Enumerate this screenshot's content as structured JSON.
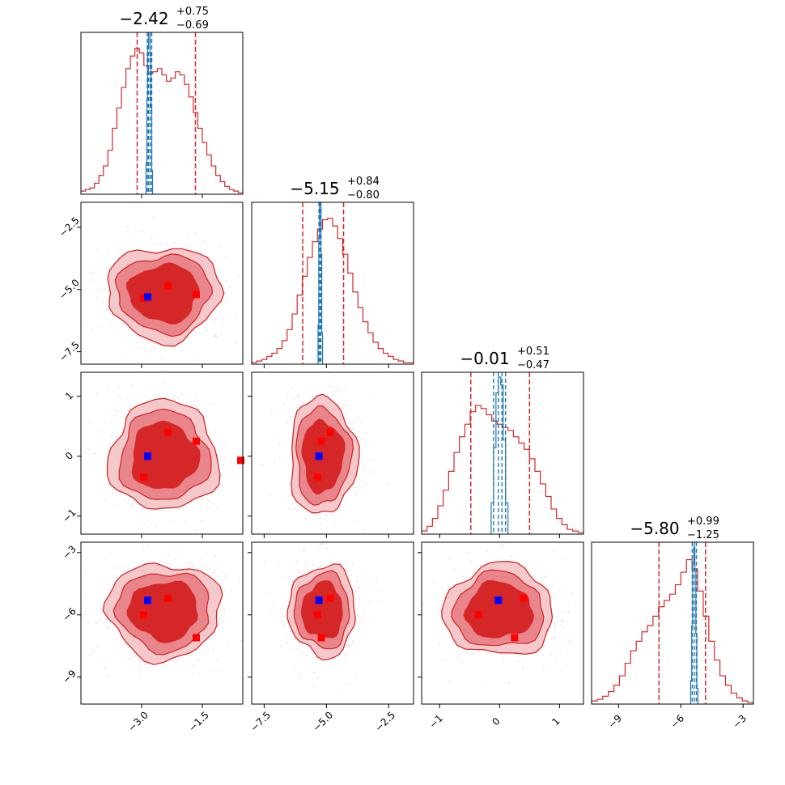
{
  "chart_data": {
    "type": "corner",
    "params": 4,
    "colors": {
      "posterior": "#d62728",
      "posterior_mid": "#e8868b",
      "posterior_light": "#f3c9cc",
      "alt": "#1f77b4",
      "truth_marker": "#0000ff",
      "mode_marker": "#ff0000"
    },
    "ranges": [
      [
        -4.5,
        -0.5
      ],
      [
        -8.0,
        -1.5
      ],
      [
        -1.3,
        1.4
      ],
      [
        -10.3,
        -2.5
      ]
    ],
    "ticks": [
      {
        "values": [
          -3.0,
          -1.5
        ],
        "labels": [
          "−3.0",
          "−1.5"
        ]
      },
      {
        "values": [
          -7.5,
          -5.0,
          -2.5
        ],
        "labels": [
          "−7.5",
          "−5.0",
          "−2.5"
        ]
      },
      {
        "values": [
          -1,
          0,
          1
        ],
        "labels": [
          "−1",
          "0",
          "1"
        ]
      },
      {
        "values": [
          -9,
          -6,
          -3
        ],
        "labels": [
          "−9",
          "−6",
          "−3"
        ]
      }
    ],
    "titles": [
      {
        "median": "−2.42",
        "plus": "+0.75",
        "minus": "−0.69"
      },
      {
        "median": "−5.15",
        "plus": "+0.84",
        "minus": "−0.80"
      },
      {
        "median": "−0.01",
        "plus": "+0.51",
        "minus": "−0.47"
      },
      {
        "median": "−5.80",
        "plus": "+0.99",
        "minus": "−1.25"
      }
    ],
    "quantile_lines": [
      [
        -3.11,
        -1.67
      ],
      [
        -5.95,
        -4.31
      ],
      [
        -0.48,
        0.5
      ],
      [
        -7.05,
        -4.81
      ]
    ],
    "alt_quantile_lines": [
      [
        -2.86,
        -2.83,
        -2.79,
        -2.75
      ],
      [
        -5.3,
        -5.26,
        -5.22
      ],
      [
        -0.1,
        -0.02,
        0.04,
        0.1
      ],
      [
        -5.45,
        -5.35,
        -5.25
      ]
    ],
    "histograms": [
      {
        "values": [
          0.02,
          0.03,
          0.04,
          0.07,
          0.12,
          0.18,
          0.28,
          0.42,
          0.55,
          0.68,
          0.8,
          0.88,
          0.93,
          0.9,
          0.82,
          0.77,
          0.78,
          0.8,
          0.76,
          0.72,
          0.74,
          0.78,
          0.76,
          0.7,
          0.62,
          0.52,
          0.42,
          0.33,
          0.25,
          0.18,
          0.12,
          0.08,
          0.05,
          0.03,
          0.02,
          0.01
        ]
      },
      {
        "values": [
          0.01,
          0.02,
          0.03,
          0.05,
          0.07,
          0.1,
          0.15,
          0.22,
          0.32,
          0.44,
          0.56,
          0.68,
          0.78,
          0.86,
          0.92,
          0.93,
          0.88,
          0.8,
          0.7,
          0.58,
          0.46,
          0.36,
          0.27,
          0.2,
          0.14,
          0.1,
          0.07,
          0.05,
          0.03,
          0.02,
          0.01,
          0.01
        ]
      },
      {
        "values": [
          0.02,
          0.05,
          0.1,
          0.18,
          0.28,
          0.4,
          0.52,
          0.62,
          0.7,
          0.78,
          0.82,
          0.8,
          0.76,
          0.72,
          0.7,
          0.68,
          0.66,
          0.62,
          0.58,
          0.54,
          0.48,
          0.4,
          0.32,
          0.24,
          0.16,
          0.1,
          0.06,
          0.03,
          0.02,
          0.01
        ]
      },
      {
        "values": [
          0.02,
          0.03,
          0.05,
          0.08,
          0.12,
          0.18,
          0.26,
          0.34,
          0.4,
          0.46,
          0.5,
          0.56,
          0.62,
          0.66,
          0.7,
          0.76,
          0.84,
          0.92,
          0.86,
          0.72,
          0.56,
          0.4,
          0.28,
          0.18,
          0.12,
          0.07,
          0.04,
          0.02,
          0.01
        ]
      }
    ],
    "alt_histograms": [
      {
        "x": [
          -2.88,
          -2.86,
          -2.84,
          -2.82,
          -2.8,
          -2.78,
          -2.76,
          -2.74
        ],
        "values": [
          0.2,
          0.6,
          0.95,
          1.0,
          1.0,
          0.9,
          0.55,
          0.15
        ]
      },
      {
        "x": [
          -5.32,
          -5.29,
          -5.26,
          -5.23,
          -5.2,
          -5.17
        ],
        "values": [
          0.25,
          0.8,
          1.0,
          1.0,
          0.7,
          0.2
        ]
      },
      {
        "x": [
          -0.12,
          -0.08,
          -0.04,
          0.0,
          0.04,
          0.08,
          0.12
        ],
        "values": [
          0.2,
          0.55,
          0.9,
          1.0,
          0.95,
          0.6,
          0.2
        ]
      },
      {
        "x": [
          -5.5,
          -5.45,
          -5.4,
          -5.35,
          -5.3,
          -5.25,
          -5.2
        ],
        "values": [
          0.15,
          0.5,
          0.9,
          1.0,
          0.85,
          0.45,
          0.1
        ]
      }
    ],
    "pair_blobs": {
      "1_0": {
        "center": [
          -2.45,
          -5.15
        ],
        "spread": [
          1.15,
          1.55
        ]
      },
      "2_0": {
        "center": [
          -2.45,
          0.0
        ],
        "spread": [
          1.1,
          0.75
        ]
      },
      "2_1": {
        "center": [
          -5.15,
          0.0
        ],
        "spread": [
          1.1,
          0.8
        ]
      },
      "3_0": {
        "center": [
          -2.45,
          -5.8
        ],
        "spread": [
          1.15,
          1.9
        ]
      },
      "3_1": {
        "center": [
          -5.15,
          -5.8
        ],
        "spread": [
          1.1,
          1.8
        ]
      },
      "3_2": {
        "center": [
          -0.01,
          -5.8
        ],
        "spread": [
          0.75,
          1.8
        ]
      }
    },
    "truth_points": {
      "1_0": [
        [
          -2.85,
          -5.3
        ]
      ],
      "2_0": [
        [
          -2.85,
          0.0
        ]
      ],
      "2_1": [
        [
          -5.3,
          0.0
        ]
      ],
      "3_0": [
        [
          -2.85,
          -5.3
        ]
      ],
      "3_1": [
        [
          -5.3,
          -5.3
        ]
      ],
      "3_2": [
        [
          -0.02,
          -5.3
        ]
      ]
    },
    "mode_points": {
      "1_0": [
        [
          -2.35,
          -4.85
        ],
        [
          -1.65,
          -5.2
        ],
        [
          -2.95,
          -5.35
        ]
      ],
      "2_0": [
        [
          -2.35,
          0.4
        ],
        [
          -1.65,
          0.25
        ],
        [
          -2.95,
          -0.35
        ],
        [
          -0.55,
          -0.07
        ]
      ],
      "2_1": [
        [
          -4.85,
          0.4
        ],
        [
          -5.2,
          0.25
        ],
        [
          -5.35,
          -0.35
        ]
      ],
      "3_0": [
        [
          -2.35,
          -5.2
        ],
        [
          -1.65,
          -7.1
        ],
        [
          -2.95,
          -6.0
        ]
      ],
      "3_1": [
        [
          -4.85,
          -5.2
        ],
        [
          -5.2,
          -7.1
        ],
        [
          -5.35,
          -6.0
        ]
      ],
      "3_2": [
        [
          0.4,
          -5.2
        ],
        [
          0.25,
          -7.1
        ],
        [
          -0.35,
          -6.0
        ]
      ]
    }
  }
}
